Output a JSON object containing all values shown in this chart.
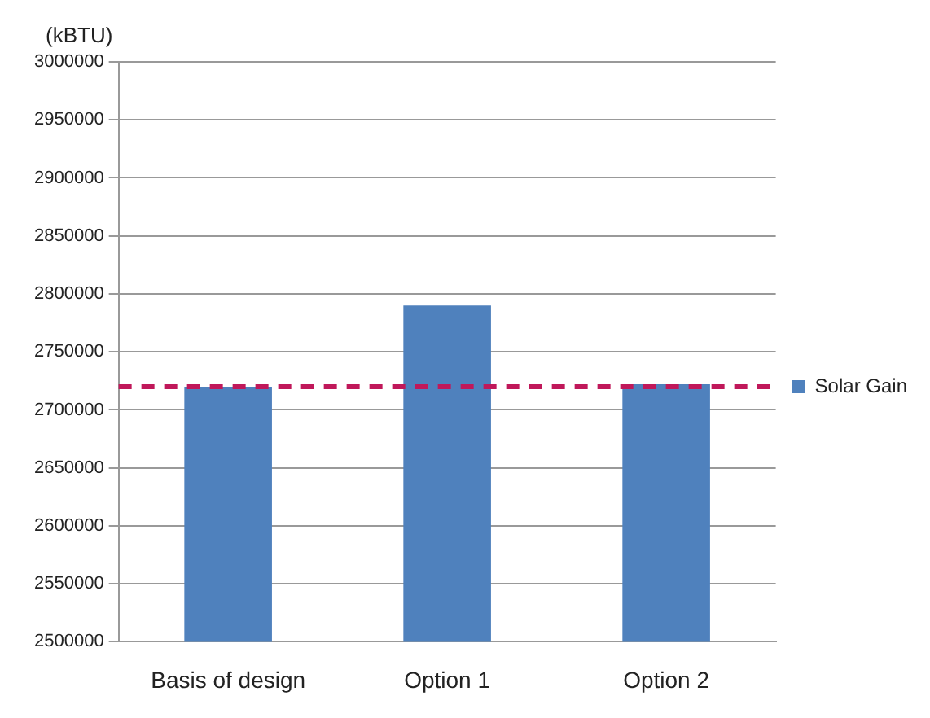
{
  "chart_data": {
    "type": "bar",
    "ylabel": "(kBTU)",
    "categories": [
      "Basis of design",
      "Option 1",
      "Option 2"
    ],
    "series": [
      {
        "name": "Solar Gain",
        "color": "#4f81bd",
        "values": [
          2720000,
          2790000,
          2722000
        ]
      }
    ],
    "ylim": [
      2500000,
      3000000
    ],
    "yticks": [
      2500000,
      2550000,
      2600000,
      2650000,
      2700000,
      2750000,
      2800000,
      2850000,
      2900000,
      2950000,
      3000000
    ],
    "ref_lines": [
      {
        "axis": "y",
        "value": 2720000,
        "color": "#c0185a",
        "line_style": "dashed"
      }
    ],
    "grid": "y",
    "legend": "right"
  }
}
